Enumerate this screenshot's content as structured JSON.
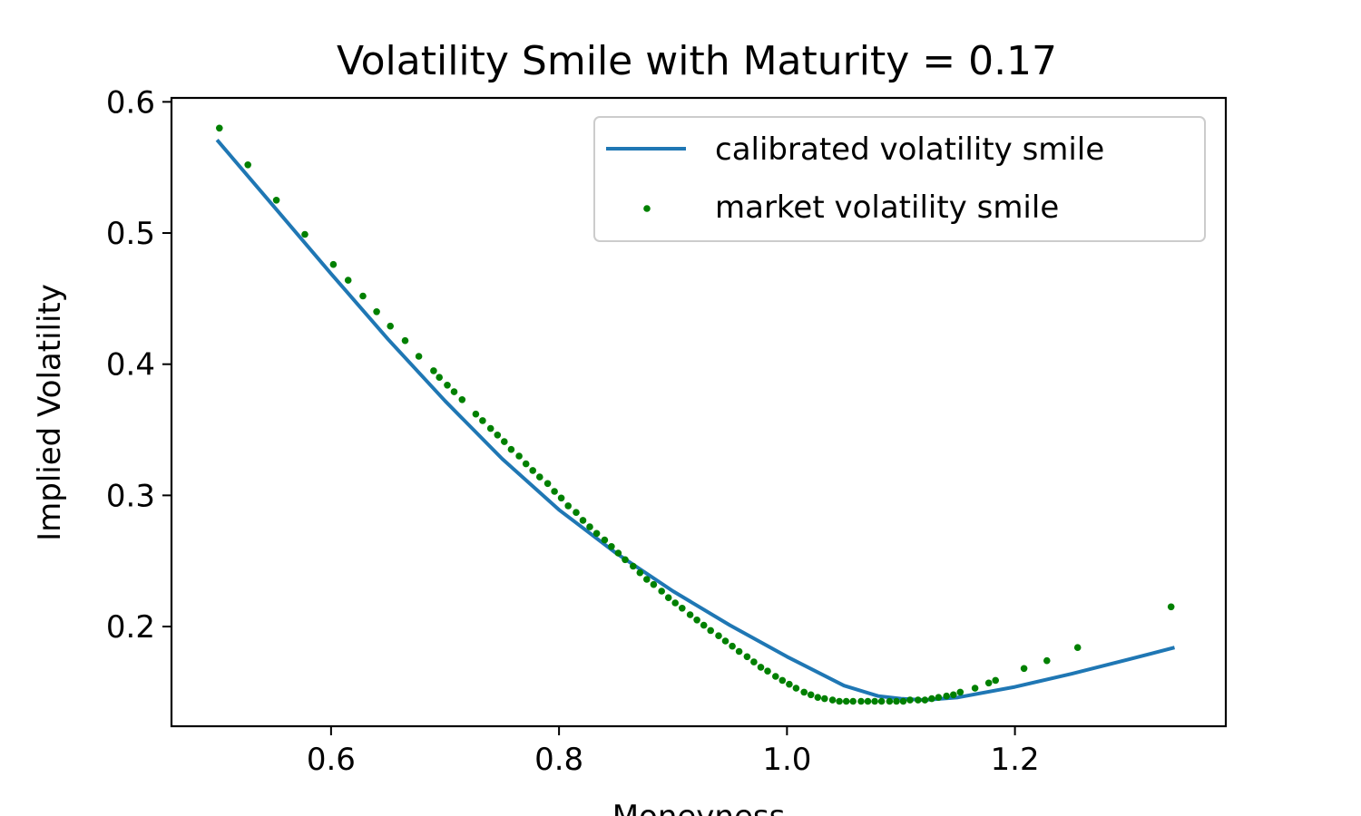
{
  "chart_data": {
    "type": "scatter",
    "title": "Volatility Smile with Maturity = 0.17",
    "xlabel": "Moneyness",
    "ylabel": "Implied Volatility",
    "xlim": [
      0.46,
      1.385
    ],
    "ylim": [
      0.124,
      0.603
    ],
    "xticks": [
      0.6,
      0.8,
      1.0,
      1.2
    ],
    "xtick_labels": [
      "0.6",
      "0.8",
      "1.0",
      "1.2"
    ],
    "yticks": [
      0.2,
      0.3,
      0.4,
      0.5,
      0.6
    ],
    "ytick_labels": [
      "0.2",
      "0.3",
      "0.4",
      "0.5",
      "0.6"
    ],
    "legend_position": "top-right",
    "series": [
      {
        "name": "calibrated volatility smile",
        "kind": "line",
        "color": "#1f77b4",
        "x": [
          0.5,
          0.55,
          0.6,
          0.65,
          0.7,
          0.75,
          0.8,
          0.85,
          0.9,
          0.95,
          1.0,
          1.05,
          1.08,
          1.1,
          1.12,
          1.15,
          1.2,
          1.25,
          1.3,
          1.34
        ],
        "y": [
          0.571,
          0.52,
          0.469,
          0.419,
          0.372,
          0.328,
          0.289,
          0.256,
          0.227,
          0.201,
          0.177,
          0.155,
          0.147,
          0.145,
          0.144,
          0.146,
          0.154,
          0.164,
          0.175,
          0.184
        ]
      },
      {
        "name": "market volatility smile",
        "kind": "scatter",
        "color": "#008000",
        "x": [
          0.502,
          0.527,
          0.552,
          0.577,
          0.602,
          0.615,
          0.628,
          0.64,
          0.652,
          0.665,
          0.677,
          0.69,
          0.695,
          0.702,
          0.708,
          0.715,
          0.727,
          0.733,
          0.74,
          0.746,
          0.752,
          0.758,
          0.765,
          0.771,
          0.777,
          0.783,
          0.79,
          0.796,
          0.802,
          0.808,
          0.815,
          0.821,
          0.827,
          0.833,
          0.84,
          0.846,
          0.852,
          0.858,
          0.865,
          0.871,
          0.877,
          0.883,
          0.89,
          0.896,
          0.902,
          0.908,
          0.915,
          0.921,
          0.927,
          0.933,
          0.94,
          0.946,
          0.952,
          0.958,
          0.965,
          0.971,
          0.977,
          0.983,
          0.99,
          0.996,
          1.002,
          1.008,
          1.015,
          1.021,
          1.027,
          1.033,
          1.04,
          1.046,
          1.052,
          1.058,
          1.065,
          1.071,
          1.077,
          1.083,
          1.09,
          1.096,
          1.102,
          1.108,
          1.115,
          1.121,
          1.127,
          1.133,
          1.14,
          1.146,
          1.152,
          1.165,
          1.177,
          1.183,
          1.208,
          1.228,
          1.255,
          1.337
        ],
        "y": [
          0.58,
          0.552,
          0.525,
          0.499,
          0.476,
          0.464,
          0.452,
          0.44,
          0.429,
          0.418,
          0.406,
          0.395,
          0.39,
          0.384,
          0.379,
          0.373,
          0.362,
          0.357,
          0.351,
          0.346,
          0.341,
          0.335,
          0.33,
          0.324,
          0.319,
          0.314,
          0.309,
          0.303,
          0.298,
          0.292,
          0.287,
          0.281,
          0.276,
          0.271,
          0.266,
          0.261,
          0.256,
          0.251,
          0.246,
          0.241,
          0.236,
          0.232,
          0.227,
          0.222,
          0.218,
          0.214,
          0.209,
          0.205,
          0.201,
          0.197,
          0.193,
          0.189,
          0.185,
          0.181,
          0.177,
          0.173,
          0.169,
          0.166,
          0.162,
          0.159,
          0.156,
          0.153,
          0.15,
          0.148,
          0.146,
          0.145,
          0.144,
          0.143,
          0.143,
          0.143,
          0.143,
          0.143,
          0.143,
          0.143,
          0.143,
          0.143,
          0.143,
          0.144,
          0.144,
          0.144,
          0.145,
          0.146,
          0.147,
          0.148,
          0.15,
          0.153,
          0.157,
          0.159,
          0.168,
          0.174,
          0.184,
          0.215
        ]
      }
    ]
  }
}
